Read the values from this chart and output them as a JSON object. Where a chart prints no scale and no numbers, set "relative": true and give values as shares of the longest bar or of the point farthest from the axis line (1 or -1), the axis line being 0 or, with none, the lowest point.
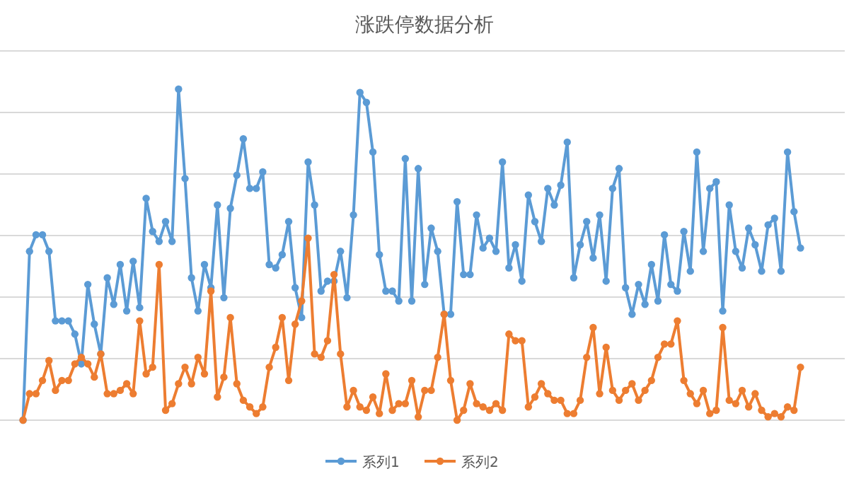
{
  "chart_data": {
    "type": "line",
    "title": "涨跌停数据分析",
    "relative": true,
    "grid": "y",
    "legend": "bottom",
    "marker": "circle",
    "line_style": "solid",
    "categories": [
      null,
      null,
      null,
      null,
      null,
      null,
      null,
      null,
      null,
      null,
      null,
      null,
      null,
      null,
      null,
      null,
      null,
      null,
      null,
      null,
      null,
      null,
      null,
      null,
      null,
      null,
      null,
      null,
      null,
      null,
      null,
      null,
      null,
      null,
      null,
      null,
      null,
      null,
      null,
      null,
      null,
      null,
      null,
      null,
      null,
      null,
      null,
      null,
      null,
      null,
      null,
      null,
      null,
      null,
      null,
      null,
      null,
      null,
      null,
      null,
      null,
      null,
      null,
      null,
      null,
      null,
      null,
      null,
      null,
      null,
      null,
      null,
      null,
      null,
      null,
      null,
      null,
      null,
      null,
      null,
      null,
      null,
      null,
      null,
      null,
      null,
      null,
      null,
      null,
      null,
      null,
      null,
      null,
      null,
      null,
      null,
      null,
      null,
      null,
      null,
      null,
      null,
      null,
      null,
      null,
      null,
      null,
      null,
      null,
      null,
      null,
      null,
      null,
      null,
      null,
      null,
      null,
      null,
      null,
      null,
      null
    ],
    "series": [
      {
        "name": "系列1",
        "color": "#5b9bd5",
        "values": [
          0,
          0.51,
          0.56,
          0.56,
          0.51,
          0.3,
          0.3,
          0.3,
          0.26,
          0.17,
          0.41,
          0.29,
          0.2,
          0.43,
          0.35,
          0.47,
          0.33,
          0.48,
          0.34,
          0.67,
          0.57,
          0.54,
          0.6,
          0.54,
          1,
          0.73,
          0.43,
          0.33,
          0.47,
          0.4,
          0.65,
          0.37,
          0.64,
          0.74,
          0.85,
          0.7,
          0.7,
          0.75,
          0.47,
          0.46,
          0.5,
          0.6,
          0.4,
          0.31,
          0.78,
          0.65,
          0.39,
          0.42,
          0.42,
          0.51,
          0.37,
          0.62,
          0.99,
          0.96,
          0.81,
          0.5,
          0.39,
          0.39,
          0.36,
          0.79,
          0.36,
          0.76,
          0.41,
          0.58,
          0.51,
          0.32,
          0.32,
          0.66,
          0.44,
          0.44,
          0.62,
          0.52,
          0.55,
          0.51,
          0.78,
          0.46,
          0.53,
          0.42,
          0.68,
          0.6,
          0.54,
          0.7,
          0.65,
          0.71,
          0.84,
          0.43,
          0.53,
          0.6,
          0.49,
          0.62,
          0.42,
          0.7,
          0.76,
          0.4,
          0.32,
          0.41,
          0.35,
          0.47,
          0.36,
          0.56,
          0.41,
          0.39,
          0.57,
          0.45,
          0.81,
          0.51,
          0.7,
          0.72,
          0.33,
          0.65,
          0.51,
          0.46,
          0.58,
          0.53,
          0.45,
          0.59,
          0.61,
          0.45,
          0.81,
          0.63,
          0.52
        ]
      },
      {
        "name": "系列2",
        "color": "#ed7d31",
        "values": [
          0,
          0.08,
          0.08,
          0.12,
          0.18,
          0.09,
          0.12,
          0.12,
          0.17,
          0.19,
          0.17,
          0.13,
          0.2,
          0.08,
          0.08,
          0.09,
          0.11,
          0.08,
          0.3,
          0.14,
          0.16,
          0.47,
          0.03,
          0.05,
          0.11,
          0.16,
          0.11,
          0.19,
          0.14,
          0.39,
          0.07,
          0.13,
          0.31,
          0.11,
          0.06,
          0.04,
          0.02,
          0.04,
          0.16,
          0.22,
          0.31,
          0.12,
          0.29,
          0.36,
          0.55,
          0.2,
          0.19,
          0.24,
          0.44,
          0.2,
          0.04,
          0.09,
          0.04,
          0.03,
          0.07,
          0.02,
          0.14,
          0.03,
          0.05,
          0.05,
          0.12,
          0.01,
          0.09,
          0.09,
          0.19,
          0.32,
          0.12,
          0,
          0.03,
          0.11,
          0.05,
          0.04,
          0.03,
          0.05,
          0.03,
          0.26,
          0.24,
          0.24,
          0.04,
          0.07,
          0.11,
          0.08,
          0.06,
          0.06,
          0.02,
          0.02,
          0.06,
          0.19,
          0.28,
          0.08,
          0.22,
          0.09,
          0.06,
          0.09,
          0.11,
          0.06,
          0.09,
          0.12,
          0.19,
          0.23,
          0.23,
          0.3,
          0.12,
          0.08,
          0.05,
          0.09,
          0.02,
          0.03,
          0.28,
          0.06,
          0.05,
          0.09,
          0.04,
          0.08,
          0.03,
          0.01,
          0.02,
          0.01,
          0.04,
          0.03,
          0.16
        ]
      }
    ]
  }
}
